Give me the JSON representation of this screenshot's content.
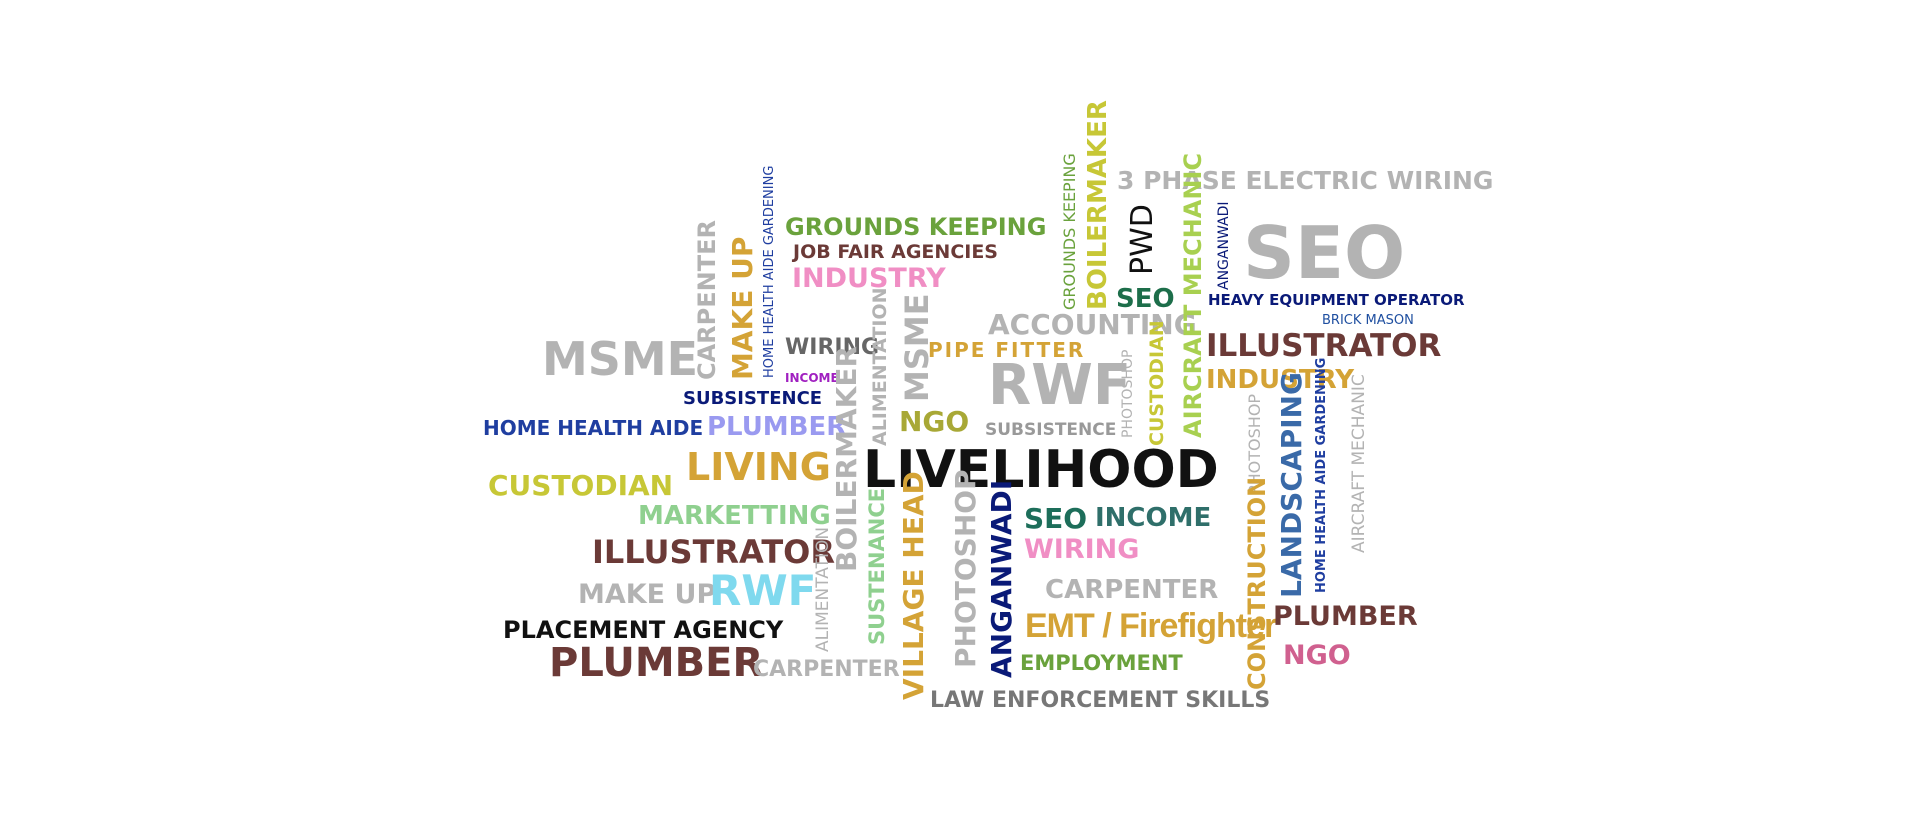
{
  "words": {
    "w01": {
      "text": "3 PHASE ELECTRIC WIRING",
      "color": "#b3b3b3"
    },
    "w02": {
      "text": "SEO",
      "color": "#b3b3b3"
    },
    "w03": {
      "text": "HEAVY EQUIPMENT OPERATOR",
      "color": "#0a1a78"
    },
    "w04": {
      "text": "BRICK MASON",
      "color": "#1f4fa0"
    },
    "w05": {
      "text": "ILLUSTRATOR",
      "color": "#6b3a37"
    },
    "w06": {
      "text": "INDUSTRY",
      "color": "#d4a336"
    },
    "w07": {
      "text": "GROUNDS KEEPING",
      "color": "#6aa23c"
    },
    "w08": {
      "text": "JOB FAIR AGENCIES",
      "color": "#6b3a37"
    },
    "w09": {
      "text": "INDUSTRY",
      "color": "#f08ec4"
    },
    "w10": {
      "text": "MSME",
      "color": "#b3b3b3"
    },
    "w11": {
      "text": "WIRING",
      "color": "#666666"
    },
    "w12": {
      "text": "INCOME",
      "color": "#a020c0"
    },
    "w13": {
      "text": "SUBSISTENCE",
      "color": "#0a1a78"
    },
    "w14": {
      "text": "HOME HEALTH AIDE",
      "color": "#1f3ea0"
    },
    "w15": {
      "text": "PLUMBER",
      "color": "#9a9af0"
    },
    "w16": {
      "text": "CUSTODIAN",
      "color": "#c7c736"
    },
    "w17": {
      "text": "LIVING",
      "color": "#d4a336"
    },
    "w18": {
      "text": "MARKETTING",
      "color": "#8fd08f"
    },
    "w19": {
      "text": "ILLUSTRATOR",
      "color": "#6b3a37"
    },
    "w20": {
      "text": "MAKE UP",
      "color": "#b3b3b3"
    },
    "w21": {
      "text": "RWF",
      "color": "#7fd9ee"
    },
    "w22": {
      "text": "PLACEMENT AGENCY",
      "color": "#111111"
    },
    "w23": {
      "text": "PLUMBER",
      "color": "#6b3a37"
    },
    "w24": {
      "text": "CARPENTER",
      "color": "#b3b3b3"
    },
    "w25": {
      "text": "PIPE FITTER",
      "color": "#d4a336"
    },
    "w26": {
      "text": "ACCOUNTING",
      "color": "#b3b3b3"
    },
    "w27": {
      "text": "RWF",
      "color": "#b3b3b3"
    },
    "w28": {
      "text": "NGO",
      "color": "#a8a836"
    },
    "w29": {
      "text": "SUBSISTENCE",
      "color": "#999999"
    },
    "w30": {
      "text": "LIVELIHOOD",
      "color": "#111111"
    },
    "w31": {
      "text": "SEO",
      "color": "#1d6e5a"
    },
    "w32": {
      "text": "INCOME",
      "color": "#2f6f6a"
    },
    "w33": {
      "text": "WIRING",
      "color": "#f08ec4"
    },
    "w34": {
      "text": "CARPENTER",
      "color": "#b3b3b3"
    },
    "w35": {
      "text": "EMT / Firefighter",
      "color": "#d4a336"
    },
    "w36": {
      "text": "EMPLOYMENT",
      "color": "#6aa23c"
    },
    "w37": {
      "text": "LAW ENFORCEMENT SKILLS",
      "color": "#777777"
    },
    "w38": {
      "text": "PLUMBER",
      "color": "#6b3a37"
    },
    "w39": {
      "text": "NGO",
      "color": "#d0608f"
    },
    "w40": {
      "text": "SEO",
      "color": "#1d6e4a"
    },
    "v01": {
      "text": "CARPENTER",
      "color": "#b3b3b3"
    },
    "v02": {
      "text": "MAKE UP",
      "color": "#d4a336"
    },
    "v03": {
      "text": "HOME HEALTH AIDE GARDENING",
      "color": "#1f3ea0"
    },
    "v04": {
      "text": "ALIMENTATION",
      "color": "#b3b3b3"
    },
    "v05": {
      "text": "MSME",
      "color": "#b3b3b3"
    },
    "v06": {
      "text": "BOILERMAKER",
      "color": "#b3b3b3"
    },
    "v07": {
      "text": "ALIMENTATION",
      "color": "#b3b3b3"
    },
    "v08": {
      "text": "SUSTENANCE",
      "color": "#8fd08f"
    },
    "v09": {
      "text": "VILLAGE HEAD",
      "color": "#d4a336"
    },
    "v10": {
      "text": "PHOTOSHOP",
      "color": "#b3b3b3"
    },
    "v11": {
      "text": "ANGANWADI",
      "color": "#0a1a78"
    },
    "v12": {
      "text": "GROUNDS KEEPING",
      "color": "#6aa23c"
    },
    "v13": {
      "text": "BOILERMAKER",
      "color": "#c7c736"
    },
    "v14": {
      "text": "PWD",
      "color": "#111111"
    },
    "v15": {
      "text": "PHOTOSHOP",
      "color": "#b3b3b3"
    },
    "v16": {
      "text": "CUSTODIAN",
      "color": "#c7c736"
    },
    "v17": {
      "text": "AIRCRAFT MECHANIC",
      "color": "#a8d050"
    },
    "v18": {
      "text": "ANGANWADI",
      "color": "#0a1a78"
    },
    "v19": {
      "text": "PHOTOSHOP",
      "color": "#b3b3b3"
    },
    "v20": {
      "text": "CONSTRUCTION",
      "color": "#d4a336"
    },
    "v21": {
      "text": "LANDSCAPING",
      "color": "#3a6aa8"
    },
    "v22": {
      "text": "HOME HEALTH AIDE GARDENING",
      "color": "#1f3ea0"
    },
    "v23": {
      "text": "AIRCRAFT MECHANIC",
      "color": "#b3b3b3"
    }
  }
}
